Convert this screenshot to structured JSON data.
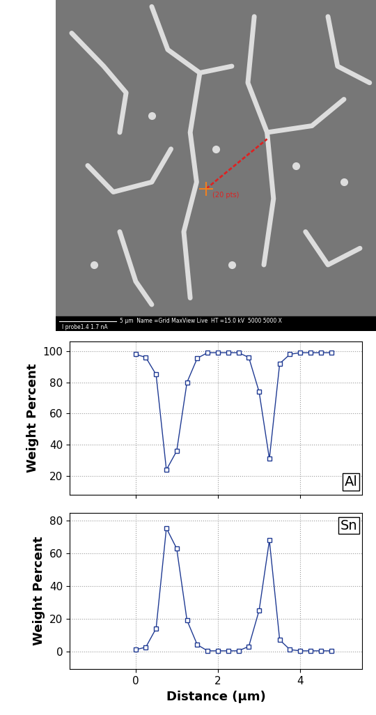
{
  "image": {
    "scale_bar": "5 µm",
    "info": "Name =Grid MaxView Live  HT =15.0 kV  5000 5000 X",
    "probe": "I probe1.4 1.7 nA",
    "line_scan_label": "(20 pts)"
  },
  "chart_data": [
    {
      "type": "line",
      "y_label": "Weight Percent",
      "annotations": [
        "Al"
      ],
      "x": [
        0,
        0.25,
        0.5,
        0.75,
        1.0,
        1.25,
        1.5,
        1.75,
        2.0,
        2.25,
        2.5,
        2.75,
        3.0,
        3.25,
        3.5,
        3.75,
        4.0,
        4.25,
        4.5,
        4.75
      ],
      "series": [
        {
          "name": "Al",
          "color": "#1f3a93",
          "marker": "square",
          "line_style": "solid",
          "values": [
            98,
            96,
            85,
            24,
            36,
            80,
            95.5,
            99,
            99,
            99,
            99,
            96,
            74,
            31,
            92,
            98,
            99,
            99,
            99,
            99
          ]
        }
      ],
      "xlim": [
        -1.6,
        5.5
      ],
      "xticks": [
        0,
        2,
        4
      ],
      "ylim": [
        8,
        106
      ],
      "yticks": [
        20,
        40,
        60,
        80,
        100
      ],
      "grid": true,
      "tick_labels": "y"
    },
    {
      "type": "line",
      "x_label": "Distance (µm)",
      "y_label": "Weight Percent",
      "annotations": [
        "Sn"
      ],
      "x": [
        0,
        0.25,
        0.5,
        0.75,
        1.0,
        1.25,
        1.5,
        1.75,
        2.0,
        2.25,
        2.5,
        2.75,
        3.0,
        3.25,
        3.5,
        3.75,
        4.0,
        4.25,
        4.5,
        4.75
      ],
      "series": [
        {
          "name": "Sn",
          "color": "#1f3a93",
          "marker": "square",
          "line_style": "solid",
          "values": [
            1,
            2.5,
            14,
            75.5,
            63,
            19,
            4,
            0.3,
            0.3,
            0.3,
            0.3,
            3,
            25,
            68,
            7,
            1,
            0.3,
            0.3,
            0.3,
            0.3
          ]
        }
      ],
      "xlim": [
        -1.6,
        5.5
      ],
      "xticks": [
        0,
        2,
        4
      ],
      "ylim": [
        -11,
        85
      ],
      "yticks": [
        0,
        20,
        40,
        60,
        80
      ],
      "grid": true
    }
  ]
}
